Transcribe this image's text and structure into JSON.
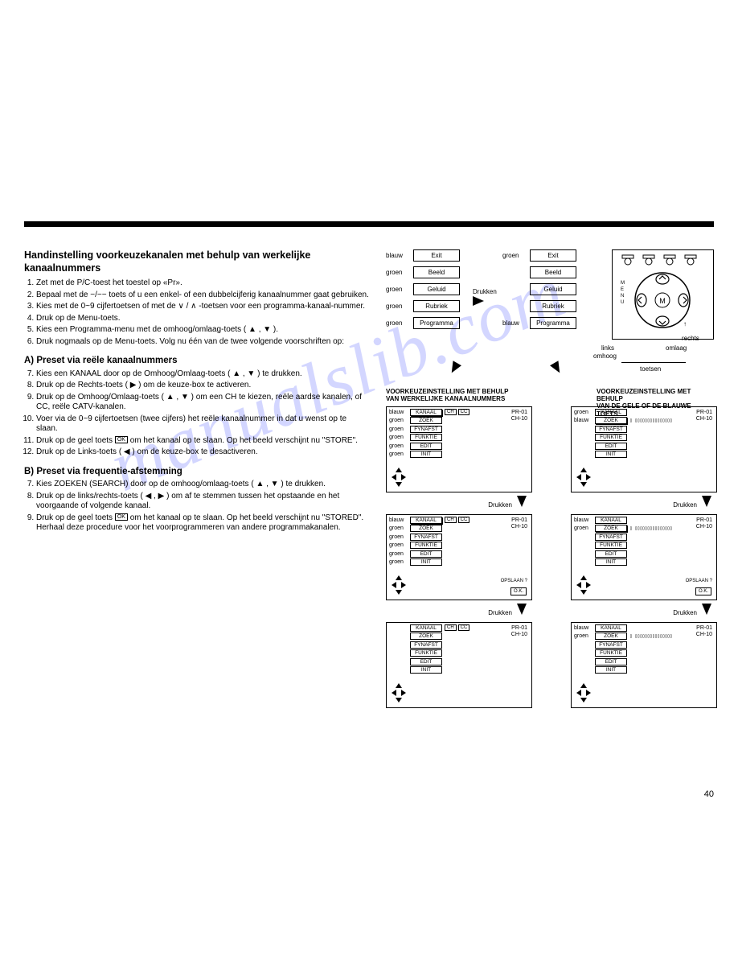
{
  "title": "Handinstelling voorkeuzekanalen met behulp van werkelijke kanaalnummers",
  "steps_main": [
    "Zet met de P/C-toest het toestel op «Pr».",
    "Bepaal met de −/−− toets of u een enkel- of een dubbelcijferig kanaalnummer gaat gebruiken.",
    "Kies met de 0~9 cijfertoetsen of met de ∨ / ∧ -toetsen voor een programma-kanaal-nummer.",
    "Druk op de Menu-toets.",
    "Kies een Programma-menu met de omhoog/omlaag-toets ( ▲ , ▼ ).",
    "Druk nogmaals op de Menu-toets. Volg nu één van de twee volgende voorschriften op:"
  ],
  "subA_title": "A) Preset via reële kanaalnummers",
  "stepsA": [
    "Kies een KANAAL door op de Omhoog/Omlaag-toets ( ▲ , ▼ ) te drukken.",
    "Druk op de Rechts-toets ( ▶ ) om de keuze-box te activeren.",
    "Druk op de Omhoog/Omlaag-toets ( ▲ , ▼ ) om een CH te kiezen, reële aardse kanalen, of CC, reële CATV-kanalen.",
    "Voer via de 0~9 cijfertoetsen (twee cijfers) het reële kanaalnummer in dat u wenst op te slaan.",
    "Druk op de geel toets OK om het kanaal op te slaan. Op het beeld verschijnt nu \"STORE\".",
    "Druk op de Links-toets ( ◀ ) om de keuze-box te desactiveren."
  ],
  "subB_title": "B) Preset via frequentie-afstemming",
  "stepsB": [
    "Kies ZOEKEN (SEARCH) door op de omhoog/omlaag-toets ( ▲ , ▼ ) te drukken.",
    "Druk op de links/rechts-toets ( ◀ , ▶ ) om af te stemmen tussen het opstaande en het voorgaande of volgende kanaal.",
    "Druk op de geel toets OK om het kanaal op te slaan. Op het beeld verschijnt nu \"STORED\". Herhaal deze procedure voor het voorprogrammeren van andere programmakanalen."
  ],
  "menu_left": [
    {
      "color": "blauw",
      "label": "Exit"
    },
    {
      "color": "groen",
      "label": "Beeld"
    },
    {
      "color": "groen",
      "label": "Geluid"
    },
    {
      "color": "groen",
      "label": "Rubriek"
    },
    {
      "color": "groen",
      "label": "Programma"
    }
  ],
  "menu_right": [
    {
      "color": "groen",
      "label": "Exit"
    },
    {
      "color": "",
      "label": "Beeld"
    },
    {
      "color": "",
      "label": "Geluid"
    },
    {
      "color": "",
      "label": "Rubriek"
    },
    {
      "color": "blauw",
      "label": "Programma"
    }
  ],
  "drukken": "Drukken",
  "section_left_hdr1": "VOORKEUZEINSTELLING MET BEHULP",
  "section_left_hdr2": "VAN WERKELIJKE KANAALNUMMERS",
  "section_right_hdr1": "VOORKEUZEINSTELLING MET BEHULP",
  "section_right_hdr2": "VAN DE GELE OF DE BLAUWE TOETS",
  "panel_items": [
    "KANAAL",
    "ZOEK",
    "FYNAFST",
    "FUNKTIE",
    "EDIT",
    "INIT"
  ],
  "mini": [
    "CH",
    "CC"
  ],
  "pr": "PR-01",
  "ch": "CH-10",
  "opslaan": "OPSLAAN ?",
  "ok": "O.K.",
  "remote_labels": {
    "links": "links",
    "omhoog": "omhoog",
    "rechts": "rechts",
    "omlaag": "omlaag",
    "toetsen": "toetsen"
  },
  "colors": {
    "blauw": "blauw",
    "groen": "groen"
  },
  "pagenum": "40",
  "watermark": "manualslib.com"
}
